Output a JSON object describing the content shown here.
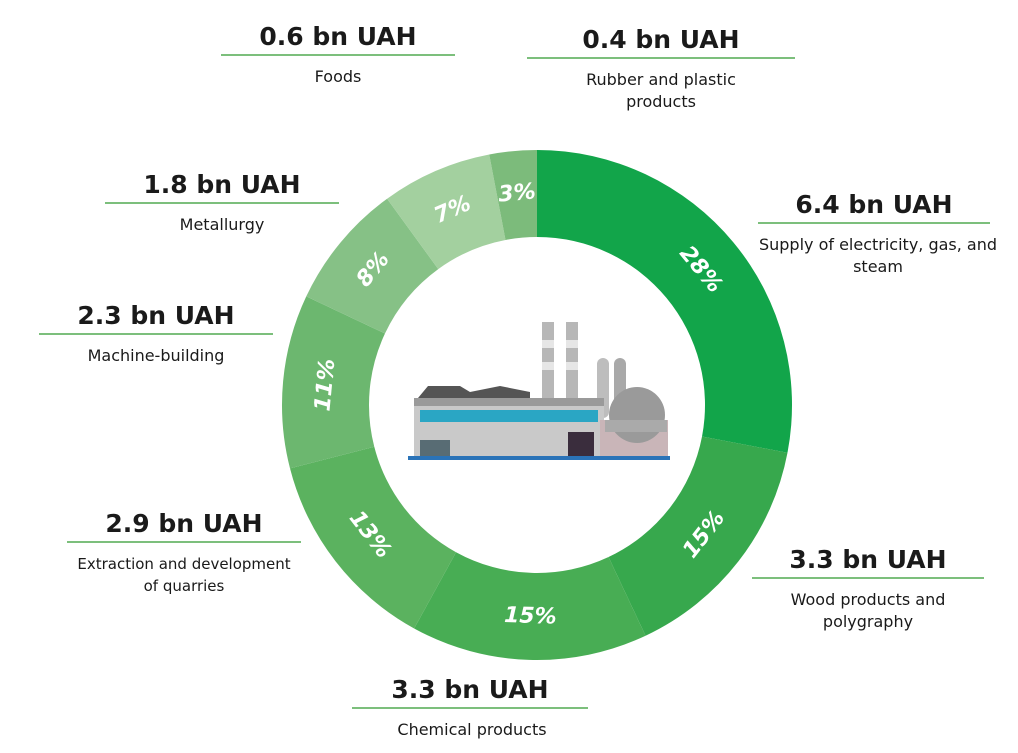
{
  "chart_data": {
    "type": "pie",
    "categories": [
      "Supply of electricity, gas, and steam",
      "Wood products and polygraphy",
      "Chemical products",
      "Extraction and development of quarries",
      "Machine-building",
      "Metallurgy",
      "Foods",
      "Rubber and plastic products"
    ],
    "values": [
      28,
      15,
      15,
      13,
      11,
      8,
      7,
      3
    ],
    "value_labels": [
      "28%",
      "15%",
      "15%",
      "13%",
      "11%",
      "8%",
      "7%",
      "3%"
    ],
    "amounts": [
      "6.4 bn UAH",
      "3.3 bn UAH",
      "3.3 bn UAH",
      "2.9 bn UAH",
      "2.3 bn UAH",
      "1.8 bn UAH",
      "0.6 bn UAH",
      "0.4 bn UAH"
    ],
    "colors": [
      "#12a54a",
      "#37a84d",
      "#48ad54",
      "#5bb25f",
      "#6cb76f",
      "#86c186",
      "#a3d09f",
      "#7cbb7b"
    ]
  }
}
